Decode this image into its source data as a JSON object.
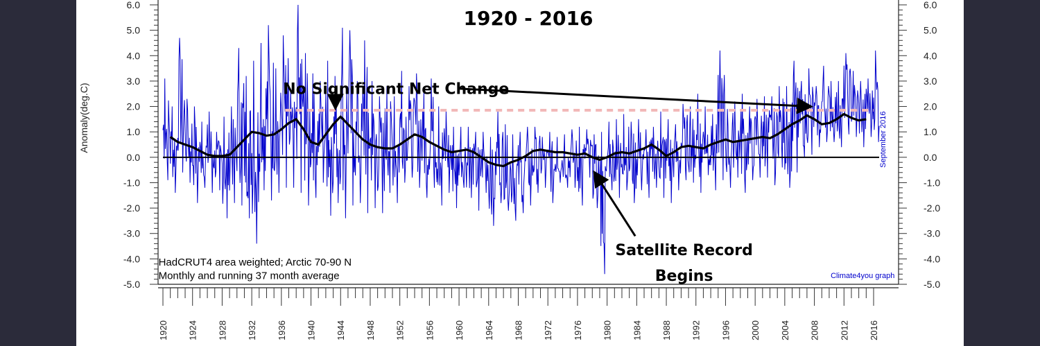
{
  "colors": {
    "background": "#2b2b3a",
    "panel": "#ffffff",
    "monthly": "#0000cc",
    "running_mean": "#000000",
    "zero_line": "#000000",
    "reference_dash": "#f2b8b8",
    "attribution": "#0000cc"
  },
  "chart_data": {
    "type": "line",
    "title": "1920 - 2016",
    "ylabel": "Anomaly(deg.C)",
    "ylim": [
      -5.0,
      6.0
    ],
    "y_ticks": [
      "6.0",
      "5.0",
      "4.0",
      "3.0",
      "2.0",
      "1.0",
      "0.0",
      "-1.0",
      "-2.0",
      "-3.0",
      "-4.0",
      "-5.0"
    ],
    "xlim": [
      1920,
      2016.75
    ],
    "x_ticks": [
      "1920",
      "1924",
      "1928",
      "1932",
      "1936",
      "1940",
      "1944",
      "1948",
      "1952",
      "1956",
      "1960",
      "1964",
      "1968",
      "1972",
      "1976",
      "1980",
      "1984",
      "1988",
      "1992",
      "1996",
      "2000",
      "2004",
      "2008",
      "2012",
      "2016"
    ],
    "grid": false,
    "series": [
      {
        "name": "Monthly",
        "kind": "monthly",
        "note": "monthly anomalies; envelope values sampled yearly",
        "year": [
          1920,
          1921,
          1922,
          1923,
          1924,
          1925,
          1926,
          1927,
          1928,
          1929,
          1930,
          1931,
          1932,
          1933,
          1934,
          1935,
          1936,
          1937,
          1938,
          1939,
          1940,
          1941,
          1942,
          1943,
          1944,
          1945,
          1946,
          1947,
          1948,
          1949,
          1950,
          1951,
          1952,
          1953,
          1954,
          1955,
          1956,
          1957,
          1958,
          1959,
          1960,
          1961,
          1962,
          1963,
          1964,
          1965,
          1966,
          1967,
          1968,
          1969,
          1970,
          1971,
          1972,
          1973,
          1974,
          1975,
          1976,
          1977,
          1978,
          1979,
          1980,
          1981,
          1982,
          1983,
          1984,
          1985,
          1986,
          1987,
          1988,
          1989,
          1990,
          1991,
          1992,
          1993,
          1994,
          1995,
          1996,
          1997,
          1998,
          1999,
          2000,
          2001,
          2002,
          2003,
          2004,
          2005,
          2006,
          2007,
          2008,
          2009,
          2010,
          2011,
          2012,
          2013,
          2014,
          2015,
          2016
        ],
        "high": [
          3.1,
          2.0,
          4.7,
          2.3,
          2.0,
          1.4,
          1.8,
          1.0,
          1.6,
          2.0,
          4.3,
          3.2,
          3.8,
          4.5,
          5.2,
          3.5,
          4.8,
          2.7,
          6.0,
          4.1,
          3.3,
          3.0,
          3.8,
          3.2,
          5.1,
          5.0,
          3.0,
          4.6,
          3.0,
          2.4,
          2.8,
          2.4,
          3.4,
          2.8,
          3.3,
          2.6,
          3.1,
          2.0,
          1.8,
          1.2,
          1.2,
          1.2,
          1.0,
          1.0,
          0.8,
          1.8,
          1.3,
          0.9,
          1.0,
          1.2,
          1.2,
          0.8,
          1.0,
          0.8,
          0.9,
          1.1,
          1.2,
          1.1,
          0.9,
          1.0,
          1.4,
          1.5,
          1.7,
          1.4,
          1.5,
          1.1,
          1.2,
          1.8,
          1.5,
          1.3,
          2.1,
          2.0,
          2.5,
          2.0,
          1.7,
          4.2,
          1.9,
          2.2,
          2.5,
          2.0,
          2.3,
          2.4,
          2.4,
          2.8,
          2.8,
          3.8,
          3.0,
          3.5,
          2.8,
          3.6,
          3.0,
          3.0,
          4.1,
          3.4,
          3.0,
          3.1,
          4.2
        ],
        "low": [
          -0.9,
          -1.4,
          -0.6,
          -1.0,
          -1.8,
          -1.2,
          -1.4,
          -1.3,
          -2.4,
          -1.8,
          -1.9,
          -2.4,
          -3.4,
          -1.3,
          -1.7,
          -1.4,
          -1.2,
          -1.2,
          -1.4,
          -1.9,
          -1.6,
          -1.0,
          -2.3,
          -1.8,
          -2.4,
          -1.9,
          -1.8,
          -2.2,
          -2.0,
          -2.2,
          -1.4,
          -1.8,
          -1.0,
          -0.8,
          -1.2,
          -1.6,
          -1.2,
          -1.9,
          -1.4,
          -2.0,
          -1.2,
          -1.6,
          -2.1,
          -1.4,
          -2.7,
          -1.8,
          -2.1,
          -2.5,
          -2.2,
          -1.9,
          -1.4,
          -1.2,
          -1.8,
          -1.0,
          -1.2,
          -1.2,
          -1.9,
          -0.8,
          -2.0,
          -4.6,
          -1.3,
          -1.6,
          -1.3,
          -1.8,
          -1.3,
          -1.6,
          -1.2,
          -1.6,
          -1.8,
          -1.3,
          -0.9,
          -1.0,
          -1.4,
          -0.7,
          -1.3,
          -0.9,
          -1.2,
          -0.8,
          -1.4,
          -0.9,
          -0.8,
          -0.8,
          -1.1,
          -0.4,
          -1.2,
          -0.6,
          0.0,
          0.1,
          0.4,
          0.6,
          0.6,
          0.4,
          0.9,
          0.8,
          0.4,
          0.8,
          0.6
        ]
      },
      {
        "name": "Running 37 month average",
        "kind": "running_mean",
        "x": [
          1921,
          1922,
          1923,
          1924,
          1925,
          1926,
          1927,
          1928,
          1929,
          1930,
          1931,
          1932,
          1933,
          1934,
          1935,
          1936,
          1937,
          1938,
          1939,
          1940,
          1941,
          1942,
          1943,
          1944,
          1945,
          1946,
          1947,
          1948,
          1949,
          1950,
          1951,
          1952,
          1953,
          1954,
          1955,
          1956,
          1957,
          1958,
          1959,
          1960,
          1961,
          1962,
          1963,
          1964,
          1965,
          1966,
          1967,
          1968,
          1969,
          1970,
          1971,
          1972,
          1973,
          1974,
          1975,
          1976,
          1977,
          1978,
          1979,
          1980,
          1981,
          1982,
          1983,
          1984,
          1985,
          1986,
          1987,
          1988,
          1989,
          1990,
          1991,
          1992,
          1993,
          1994,
          1995,
          1996,
          1997,
          1998,
          1999,
          2000,
          2001,
          2002,
          2003,
          2004,
          2005,
          2006,
          2007,
          2008,
          2009,
          2010,
          2011,
          2012,
          2013,
          2014,
          2015
        ],
        "y": [
          0.8,
          0.6,
          0.5,
          0.4,
          0.25,
          0.1,
          0.05,
          0.05,
          0.1,
          0.4,
          0.7,
          1.0,
          0.95,
          0.85,
          0.9,
          1.1,
          1.35,
          1.5,
          1.1,
          0.6,
          0.5,
          0.9,
          1.3,
          1.6,
          1.3,
          1.0,
          0.7,
          0.5,
          0.4,
          0.35,
          0.35,
          0.5,
          0.7,
          0.9,
          0.8,
          0.6,
          0.45,
          0.3,
          0.2,
          0.25,
          0.3,
          0.2,
          0.0,
          -0.2,
          -0.3,
          -0.35,
          -0.2,
          -0.1,
          0.05,
          0.25,
          0.3,
          0.25,
          0.2,
          0.2,
          0.15,
          0.1,
          0.15,
          0.0,
          -0.1,
          0.0,
          0.15,
          0.2,
          0.15,
          0.25,
          0.35,
          0.5,
          0.3,
          0.05,
          0.2,
          0.4,
          0.45,
          0.4,
          0.35,
          0.5,
          0.6,
          0.7,
          0.6,
          0.65,
          0.7,
          0.75,
          0.8,
          0.75,
          0.9,
          1.1,
          1.3,
          1.45,
          1.65,
          1.5,
          1.3,
          1.35,
          1.5,
          1.7,
          1.55,
          1.45,
          1.5
        ]
      },
      {
        "name": "Zero line",
        "kind": "zero",
        "x": [
          1920,
          2016.75
        ],
        "y": [
          0.0,
          0.0
        ]
      },
      {
        "name": "Reference level",
        "kind": "reference",
        "x": [
          1936.5,
          2016.0
        ],
        "y": [
          1.85,
          1.85
        ]
      }
    ],
    "annotations": [
      {
        "kind": "label",
        "text": "No Significant Net Change",
        "x": 1951.5,
        "y": 2.7,
        "size": "large"
      },
      {
        "kind": "arrow",
        "from": [
          1943.3,
          2.7
        ],
        "to": [
          1943.3,
          2.0
        ]
      },
      {
        "kind": "arrow",
        "from": [
          1960.1,
          2.7
        ],
        "to": [
          2007.3,
          2.0
        ]
      },
      {
        "kind": "label",
        "text": "Satellite Record",
        "x": 1990.4,
        "y": -3.65,
        "size": "large"
      },
      {
        "kind": "label",
        "text": "Begins",
        "x": 1990.4,
        "y": -4.65,
        "size": "large"
      },
      {
        "kind": "arrow",
        "from": [
          1983.8,
          -3.1
        ],
        "to": [
          1978.4,
          -0.65
        ]
      },
      {
        "kind": "label",
        "text": "HadCRUT4 area weighted; Arctic 70-90 N",
        "x": 1919.4,
        "y": -4.12,
        "size": "small"
      },
      {
        "kind": "label",
        "text": "Monthly and running 37 month average",
        "x": 1919.4,
        "y": -4.65,
        "size": "small"
      },
      {
        "kind": "label",
        "text": "Climate4you graph",
        "x": 2010.2,
        "y": -4.65,
        "size": "tiny"
      },
      {
        "kind": "label",
        "text": "September 2016",
        "x": 2017.6,
        "y": 0.7,
        "size": "tiny",
        "rotated": true
      }
    ]
  }
}
